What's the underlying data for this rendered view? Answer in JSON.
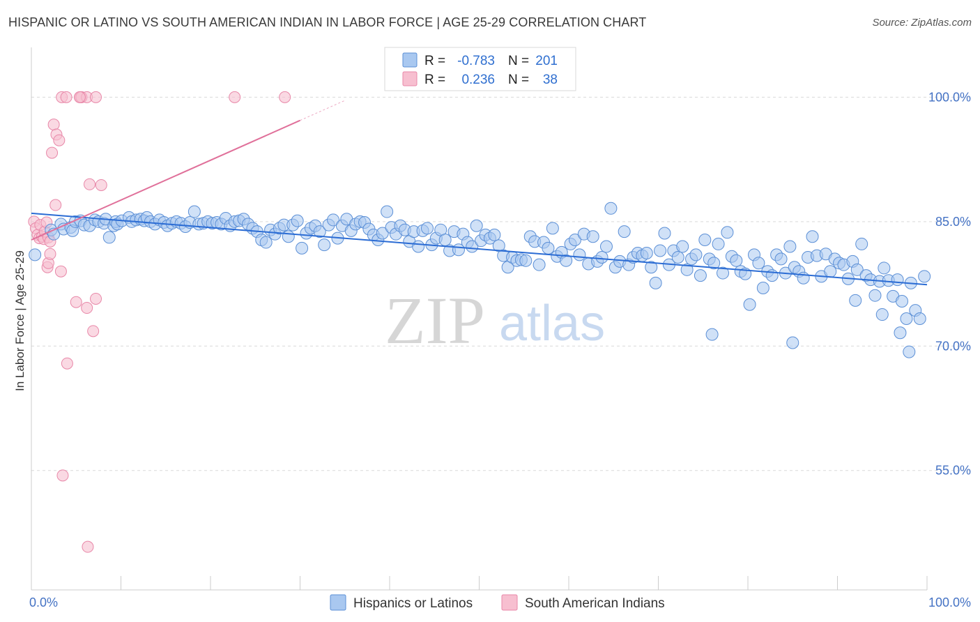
{
  "header": {
    "title": "HISPANIC OR LATINO VS SOUTH AMERICAN INDIAN IN LABOR FORCE | AGE 25-29 CORRELATION CHART",
    "source": "Source: ZipAtlas.com"
  },
  "watermark": {
    "zip": "ZIP",
    "atlas": "atlas"
  },
  "stats_legend": {
    "rows": [
      {
        "r_label": "R =",
        "r_value": "-0.783",
        "n_label": "N =",
        "n_value": "201"
      },
      {
        "r_label": "R =",
        "r_value": "0.236",
        "n_label": "N =",
        "n_value": "38"
      }
    ]
  },
  "colors": {
    "blue_fill": "#a9c8f0",
    "blue_stroke": "#5b8fd6",
    "blue_line": "#2b6cd4",
    "pink_fill": "#f7bfd0",
    "pink_stroke": "#e887a8",
    "pink_line": "#e0709a",
    "tick_label": "#4472c4",
    "grid": "#d9d9d9"
  },
  "chart_data": {
    "type": "scatter",
    "title": "HISPANIC OR LATINO VS SOUTH AMERICAN INDIAN IN LABOR FORCE | AGE 25-29 CORRELATION CHART",
    "ylabel": "In Labor Force | Age 25-29",
    "xlabel": "",
    "xlim": [
      0,
      100
    ],
    "ylim": [
      40.6,
      106.0
    ],
    "x_tick_labels": [
      {
        "value": 0,
        "label": "0.0%"
      },
      {
        "value": 100,
        "label": "100.0%"
      }
    ],
    "y_tick_labels": [
      {
        "value": 100,
        "label": "100.0%"
      },
      {
        "value": 85,
        "label": "85.0%"
      },
      {
        "value": 70,
        "label": "70.0%"
      },
      {
        "value": 55,
        "label": "55.0%"
      }
    ],
    "grid": true,
    "legend_position": "bottom",
    "series": [
      {
        "name": "Hispanics or Latinos",
        "color": "#a9c8f0",
        "r": -0.783,
        "n": 201,
        "trend": {
          "x": [
            0,
            100
          ],
          "y": [
            86.0,
            77.4
          ]
        },
        "points": [
          [
            0.4,
            81.0
          ],
          [
            2.2,
            84.0
          ],
          [
            2.5,
            83.5
          ],
          [
            3.3,
            84.7
          ],
          [
            3.6,
            84.1
          ],
          [
            4.4,
            84.3
          ],
          [
            4.6,
            83.9
          ],
          [
            4.9,
            85.0
          ],
          [
            5.5,
            85.1
          ],
          [
            5.9,
            84.6
          ],
          [
            6.5,
            84.5
          ],
          [
            7.1,
            85.2
          ],
          [
            7.5,
            85.0
          ],
          [
            8.1,
            84.8
          ],
          [
            8.3,
            85.3
          ],
          [
            8.7,
            83.1
          ],
          [
            9.2,
            84.5
          ],
          [
            9.4,
            85.0
          ],
          [
            9.6,
            84.7
          ],
          [
            10.1,
            85.1
          ],
          [
            10.9,
            85.5
          ],
          [
            11.2,
            85.0
          ],
          [
            11.7,
            85.2
          ],
          [
            12.2,
            85.3
          ],
          [
            12.6,
            85.1
          ],
          [
            12.9,
            85.5
          ],
          [
            13.3,
            85.0
          ],
          [
            13.8,
            84.7
          ],
          [
            14.3,
            85.2
          ],
          [
            14.8,
            84.9
          ],
          [
            15.2,
            84.5
          ],
          [
            15.7,
            84.8
          ],
          [
            16.2,
            85.0
          ],
          [
            16.7,
            84.8
          ],
          [
            17.2,
            84.4
          ],
          [
            17.7,
            84.9
          ],
          [
            18.2,
            86.2
          ],
          [
            18.7,
            84.7
          ],
          [
            19.2,
            84.8
          ],
          [
            19.7,
            85.0
          ],
          [
            20.2,
            84.8
          ],
          [
            20.7,
            84.9
          ],
          [
            21.2,
            84.7
          ],
          [
            21.7,
            85.4
          ],
          [
            22.2,
            84.5
          ],
          [
            22.7,
            85.0
          ],
          [
            23.2,
            85.1
          ],
          [
            23.7,
            85.3
          ],
          [
            24.2,
            84.7
          ],
          [
            24.7,
            84.2
          ],
          [
            25.2,
            83.8
          ],
          [
            25.7,
            82.8
          ],
          [
            26.2,
            82.5
          ],
          [
            26.7,
            84.0
          ],
          [
            27.2,
            83.5
          ],
          [
            27.7,
            84.2
          ],
          [
            28.2,
            84.6
          ],
          [
            28.7,
            83.2
          ],
          [
            29.2,
            84.6
          ],
          [
            29.7,
            85.1
          ],
          [
            30.2,
            81.8
          ],
          [
            30.7,
            83.6
          ],
          [
            31.2,
            84.2
          ],
          [
            31.7,
            84.5
          ],
          [
            32.2,
            83.8
          ],
          [
            32.7,
            82.2
          ],
          [
            33.2,
            84.6
          ],
          [
            33.7,
            85.2
          ],
          [
            34.2,
            83.0
          ],
          [
            34.7,
            84.5
          ],
          [
            35.2,
            85.3
          ],
          [
            35.7,
            83.9
          ],
          [
            36.2,
            84.7
          ],
          [
            36.7,
            85.0
          ],
          [
            37.2,
            84.9
          ],
          [
            37.7,
            84.1
          ],
          [
            38.2,
            83.4
          ],
          [
            38.7,
            82.8
          ],
          [
            39.2,
            83.6
          ],
          [
            39.7,
            86.2
          ],
          [
            40.2,
            84.3
          ],
          [
            40.7,
            83.5
          ],
          [
            41.2,
            84.5
          ],
          [
            41.7,
            84.0
          ],
          [
            42.2,
            82.6
          ],
          [
            42.7,
            83.8
          ],
          [
            43.2,
            82.0
          ],
          [
            43.7,
            83.9
          ],
          [
            44.2,
            84.2
          ],
          [
            44.7,
            82.2
          ],
          [
            45.2,
            83.0
          ],
          [
            45.7,
            84.0
          ],
          [
            46.2,
            82.8
          ],
          [
            46.7,
            81.5
          ],
          [
            47.2,
            83.8
          ],
          [
            47.7,
            81.6
          ],
          [
            48.2,
            83.5
          ],
          [
            48.7,
            82.5
          ],
          [
            49.2,
            82.0
          ],
          [
            49.7,
            84.5
          ],
          [
            50.2,
            82.7
          ],
          [
            50.7,
            83.4
          ],
          [
            51.2,
            83.0
          ],
          [
            51.7,
            83.4
          ],
          [
            52.2,
            82.1
          ],
          [
            52.7,
            80.9
          ],
          [
            53.2,
            79.5
          ],
          [
            53.7,
            80.7
          ],
          [
            54.2,
            80.3
          ],
          [
            54.7,
            80.4
          ],
          [
            55.2,
            80.3
          ],
          [
            55.7,
            83.2
          ],
          [
            56.2,
            82.6
          ],
          [
            56.7,
            79.8
          ],
          [
            57.2,
            82.5
          ],
          [
            57.7,
            81.8
          ],
          [
            58.2,
            84.2
          ],
          [
            58.7,
            80.8
          ],
          [
            59.2,
            81.3
          ],
          [
            59.7,
            80.3
          ],
          [
            60.2,
            82.3
          ],
          [
            60.7,
            82.8
          ],
          [
            61.2,
            81.0
          ],
          [
            61.7,
            83.5
          ],
          [
            62.2,
            79.9
          ],
          [
            62.7,
            83.2
          ],
          [
            63.2,
            80.2
          ],
          [
            63.7,
            80.7
          ],
          [
            64.2,
            82.0
          ],
          [
            64.7,
            86.6
          ],
          [
            65.2,
            79.5
          ],
          [
            65.7,
            80.2
          ],
          [
            66.2,
            83.8
          ],
          [
            66.7,
            79.8
          ],
          [
            67.2,
            80.7
          ],
          [
            67.7,
            81.2
          ],
          [
            68.2,
            80.9
          ],
          [
            68.7,
            81.2
          ],
          [
            69.2,
            79.5
          ],
          [
            69.7,
            77.6
          ],
          [
            70.2,
            81.5
          ],
          [
            70.7,
            83.6
          ],
          [
            71.2,
            79.8
          ],
          [
            71.7,
            81.5
          ],
          [
            72.2,
            80.7
          ],
          [
            72.7,
            82.0
          ],
          [
            73.2,
            79.2
          ],
          [
            73.7,
            80.5
          ],
          [
            74.2,
            81.0
          ],
          [
            74.7,
            78.5
          ],
          [
            75.2,
            82.8
          ],
          [
            75.7,
            80.5
          ],
          [
            76.2,
            80.0
          ],
          [
            76.7,
            82.3
          ],
          [
            77.2,
            78.8
          ],
          [
            77.7,
            83.7
          ],
          [
            78.2,
            80.8
          ],
          [
            78.7,
            80.3
          ],
          [
            79.2,
            79.0
          ],
          [
            79.7,
            78.7
          ],
          [
            80.2,
            75.0
          ],
          [
            80.7,
            81.0
          ],
          [
            81.2,
            80.0
          ],
          [
            81.7,
            77.0
          ],
          [
            82.2,
            79.0
          ],
          [
            82.7,
            78.5
          ],
          [
            83.2,
            81.0
          ],
          [
            83.7,
            80.5
          ],
          [
            84.2,
            78.8
          ],
          [
            84.7,
            82.0
          ],
          [
            85.2,
            79.5
          ],
          [
            85.7,
            79.0
          ],
          [
            86.2,
            78.2
          ],
          [
            86.7,
            80.7
          ],
          [
            87.2,
            83.2
          ],
          [
            87.7,
            80.9
          ],
          [
            88.2,
            78.4
          ],
          [
            88.7,
            81.1
          ],
          [
            89.2,
            79.0
          ],
          [
            89.7,
            80.5
          ],
          [
            90.2,
            80.0
          ],
          [
            90.7,
            79.8
          ],
          [
            91.2,
            78.1
          ],
          [
            91.7,
            80.2
          ],
          [
            92.2,
            79.2
          ],
          [
            92.7,
            82.3
          ],
          [
            93.2,
            78.5
          ],
          [
            93.7,
            78.0
          ],
          [
            94.2,
            76.1
          ],
          [
            94.7,
            77.8
          ],
          [
            95.2,
            79.4
          ],
          [
            95.7,
            77.9
          ],
          [
            96.2,
            76.0
          ],
          [
            96.7,
            78.0
          ],
          [
            97.2,
            75.4
          ],
          [
            97.7,
            73.3
          ],
          [
            98.2,
            77.6
          ],
          [
            98.7,
            74.3
          ],
          [
            99.2,
            73.3
          ],
          [
            99.7,
            78.4
          ],
          [
            76.0,
            71.4
          ],
          [
            85.0,
            70.4
          ],
          [
            92.0,
            75.5
          ],
          [
            95.0,
            73.8
          ],
          [
            97.0,
            71.6
          ],
          [
            98.0,
            69.3
          ]
        ]
      },
      {
        "name": "South American Indians",
        "color": "#f7bfd0",
        "r": 0.236,
        "n": 38,
        "trend": {
          "x": [
            0,
            30
          ],
          "y": [
            82.8,
            97.2
          ]
        },
        "trend_dashed": {
          "x": [
            30,
            35
          ],
          "y": [
            97.2,
            99.6
          ]
        },
        "points": [
          [
            0.3,
            85.0
          ],
          [
            0.5,
            84.2
          ],
          [
            0.7,
            83.4
          ],
          [
            0.9,
            83.0
          ],
          [
            1.0,
            84.6
          ],
          [
            1.2,
            83.2
          ],
          [
            1.4,
            82.9
          ],
          [
            1.5,
            83.8
          ],
          [
            1.7,
            84.9
          ],
          [
            1.9,
            83.1
          ],
          [
            2.1,
            82.6
          ],
          [
            2.3,
            93.3
          ],
          [
            2.5,
            96.7
          ],
          [
            2.7,
            87.0
          ],
          [
            2.8,
            95.5
          ],
          [
            3.1,
            94.8
          ],
          [
            3.3,
            79.0
          ],
          [
            3.5,
            54.4
          ],
          [
            3.4,
            100.0
          ],
          [
            3.9,
            100.0
          ],
          [
            4.0,
            67.9
          ],
          [
            5.5,
            100.0
          ],
          [
            5.6,
            100.0
          ],
          [
            6.2,
            100.0
          ],
          [
            6.5,
            89.5
          ],
          [
            7.2,
            100.0
          ],
          [
            7.8,
            89.4
          ],
          [
            7.2,
            75.7
          ],
          [
            6.2,
            74.6
          ],
          [
            5.0,
            75.3
          ],
          [
            6.9,
            71.8
          ],
          [
            6.3,
            45.8
          ],
          [
            1.8,
            79.5
          ],
          [
            1.9,
            80.0
          ],
          [
            22.7,
            100.0
          ],
          [
            28.3,
            100.0
          ],
          [
            2.1,
            81.1
          ],
          [
            5.4,
            100.0
          ]
        ]
      }
    ]
  },
  "bottom_legend": {
    "items": [
      {
        "label": "Hispanics or Latinos"
      },
      {
        "label": "South American Indians"
      }
    ]
  }
}
